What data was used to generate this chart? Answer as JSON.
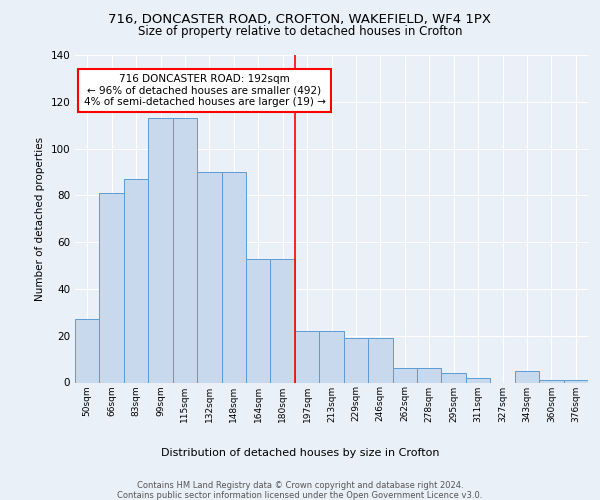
{
  "title1": "716, DONCASTER ROAD, CROFTON, WAKEFIELD, WF4 1PX",
  "title2": "Size of property relative to detached houses in Crofton",
  "xlabel": "Distribution of detached houses by size in Crofton",
  "ylabel": "Number of detached properties",
  "categories": [
    "50sqm",
    "66sqm",
    "83sqm",
    "99sqm",
    "115sqm",
    "132sqm",
    "148sqm",
    "164sqm",
    "180sqm",
    "197sqm",
    "213sqm",
    "229sqm",
    "246sqm",
    "262sqm",
    "278sqm",
    "295sqm",
    "311sqm",
    "327sqm",
    "343sqm",
    "360sqm",
    "376sqm"
  ],
  "values": [
    27,
    81,
    87,
    113,
    113,
    90,
    90,
    53,
    53,
    22,
    22,
    19,
    19,
    6,
    6,
    4,
    2,
    0,
    5,
    1,
    1
  ],
  "bar_color": "#c9d9ed",
  "bar_edge_color": "#5b9bd5",
  "annotation_text1": "716 DONCASTER ROAD: 192sqm",
  "annotation_text2": "← 96% of detached houses are smaller (492)",
  "annotation_text3": "4% of semi-detached houses are larger (19) →",
  "footer": "Contains HM Land Registry data © Crown copyright and database right 2024.\nContains public sector information licensed under the Open Government Licence v3.0.",
  "ylim": [
    0,
    140
  ],
  "yticks": [
    0,
    20,
    40,
    60,
    80,
    100,
    120,
    140
  ],
  "bg_color": "#eaf0f8",
  "grid_color": "#ffffff"
}
